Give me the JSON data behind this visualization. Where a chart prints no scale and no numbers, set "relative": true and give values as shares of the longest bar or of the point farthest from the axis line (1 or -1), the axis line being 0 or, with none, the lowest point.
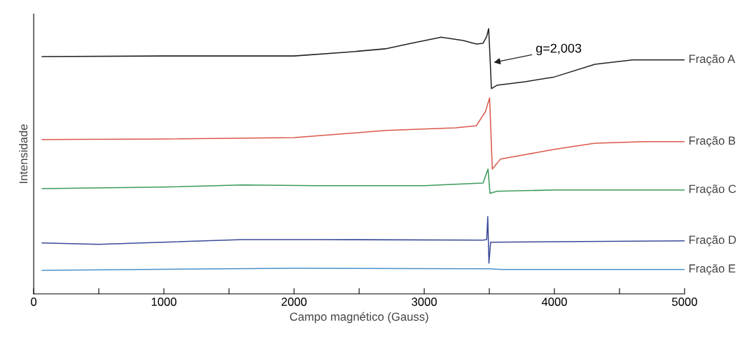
{
  "chart_data": {
    "type": "line",
    "relative": true,
    "xlabel": "Campo magnético (Gauss)",
    "ylabel": "Intensidade",
    "xlim": [
      0,
      5000
    ],
    "xticks": [
      0,
      {
        "value": 500,
        "label": null
      },
      1000,
      {
        "value": 1500,
        "label": null
      },
      2000,
      {
        "value": 2500,
        "label": null
      },
      3000,
      {
        "value": 3500,
        "label": null
      },
      4000,
      {
        "value": 4500,
        "label": null
      },
      5000
    ],
    "grid": false,
    "legend": false,
    "marker": "none",
    "line_style": "solid",
    "annotations": [
      {
        "text": "g=2,003",
        "x": 3520,
        "y": 0.871
      }
    ],
    "series": [
      {
        "name": "Fração A",
        "color": "#222222",
        "x": [
          65,
          1000,
          2000,
          2400,
          2700,
          2900,
          3130,
          3300,
          3400,
          3452,
          3480,
          3495,
          3505,
          3516,
          3560,
          3775,
          4000,
          4312,
          4600,
          5000
        ],
        "values": [
          0.895,
          0.897,
          0.897,
          0.911,
          0.924,
          0.945,
          0.968,
          0.955,
          0.942,
          0.945,
          0.971,
          1.0,
          0.897,
          0.774,
          0.787,
          0.8,
          0.818,
          0.866,
          0.882,
          0.882
        ]
      },
      {
        "name": "Fração B",
        "color": "#d9574a",
        "x": [
          65,
          1000,
          2000,
          2700,
          3240,
          3400,
          3470,
          3502,
          3523,
          3585,
          3763,
          4000,
          4312,
          4700,
          5000
        ],
        "values": [
          0.582,
          0.584,
          0.589,
          0.616,
          0.626,
          0.634,
          0.687,
          0.739,
          0.471,
          0.508,
          0.524,
          0.545,
          0.568,
          0.574,
          0.574
        ]
      },
      {
        "name": "Fração C",
        "color": "#3a9a5a",
        "x": [
          65,
          1000,
          1600,
          2161,
          3000,
          3452,
          3490,
          3505,
          3560,
          4000,
          5000
        ],
        "values": [
          0.397,
          0.403,
          0.411,
          0.408,
          0.408,
          0.418,
          0.471,
          0.379,
          0.387,
          0.392,
          0.392
        ]
      },
      {
        "name": "Fração D",
        "color": "#3a4a9a",
        "x": [
          65,
          500,
          1600,
          2161,
          3452,
          3480,
          3488,
          3497,
          3510,
          4000,
          5000
        ],
        "values": [
          0.192,
          0.187,
          0.205,
          0.205,
          0.203,
          0.205,
          0.292,
          0.116,
          0.195,
          0.197,
          0.2
        ]
      },
      {
        "name": "Fração E",
        "color": "#4a90c8",
        "x": [
          65,
          2000,
          3495,
          3600,
          5000
        ],
        "values": [
          0.089,
          0.097,
          0.095,
          0.092,
          0.092
        ]
      }
    ]
  }
}
